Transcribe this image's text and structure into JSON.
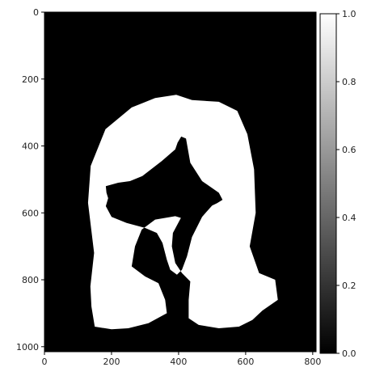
{
  "chart_data": {
    "type": "heatmap",
    "title": "",
    "xlabel": "",
    "ylabel": "",
    "xlim": [
      0,
      810
    ],
    "ylim": [
      1015,
      0
    ],
    "xticks": [
      "0",
      "200",
      "400",
      "600",
      "800"
    ],
    "yticks": [
      "0",
      "200",
      "400",
      "600",
      "800",
      "1000"
    ],
    "colormap": "gray",
    "colorbar": {
      "range": [
        0,
        1
      ],
      "ticks": [
        "0.0",
        "0.2",
        "0.4",
        "0.6",
        "0.8",
        "1.0"
      ]
    },
    "mask_values": {
      "background": 0,
      "foreground": 1
    },
    "mask_outline": [
      [
        137,
        820
      ],
      [
        148,
        720
      ],
      [
        130,
        570
      ],
      [
        138,
        460
      ],
      [
        182,
        350
      ],
      [
        260,
        285
      ],
      [
        330,
        257
      ],
      [
        393,
        247
      ],
      [
        440,
        263
      ],
      [
        520,
        268
      ],
      [
        575,
        295
      ],
      [
        605,
        365
      ],
      [
        625,
        470
      ],
      [
        630,
        600
      ],
      [
        612,
        700
      ],
      [
        640,
        780
      ],
      [
        688,
        800
      ],
      [
        696,
        860
      ],
      [
        650,
        892
      ],
      [
        620,
        920
      ],
      [
        580,
        940
      ],
      [
        520,
        945
      ],
      [
        460,
        935
      ],
      [
        430,
        915
      ],
      [
        430,
        860
      ],
      [
        435,
        805
      ],
      [
        410,
        780
      ],
      [
        390,
        750
      ],
      [
        380,
        700
      ],
      [
        383,
        660
      ],
      [
        407,
        615
      ],
      [
        390,
        610
      ],
      [
        330,
        620
      ],
      [
        290,
        650
      ],
      [
        270,
        700
      ],
      [
        260,
        760
      ],
      [
        300,
        790
      ],
      [
        340,
        810
      ],
      [
        360,
        860
      ],
      [
        365,
        900
      ],
      [
        310,
        930
      ],
      [
        250,
        945
      ],
      [
        200,
        948
      ],
      [
        150,
        940
      ],
      [
        140,
        880
      ]
    ],
    "hole_outline": [
      [
        183,
        520
      ],
      [
        220,
        510
      ],
      [
        255,
        505
      ],
      [
        292,
        490
      ],
      [
        350,
        445
      ],
      [
        390,
        410
      ],
      [
        397,
        390
      ],
      [
        408,
        372
      ],
      [
        422,
        378
      ],
      [
        435,
        450
      ],
      [
        470,
        505
      ],
      [
        520,
        540
      ],
      [
        531,
        561
      ],
      [
        515,
        571
      ],
      [
        500,
        578
      ],
      [
        470,
        612
      ],
      [
        440,
        672
      ],
      [
        425,
        730
      ],
      [
        410,
        770
      ],
      [
        395,
        785
      ],
      [
        375,
        770
      ],
      [
        365,
        740
      ],
      [
        352,
        690
      ],
      [
        335,
        660
      ],
      [
        300,
        645
      ],
      [
        245,
        630
      ],
      [
        200,
        612
      ],
      [
        183,
        580
      ],
      [
        190,
        556
      ],
      [
        185,
        540
      ]
    ]
  }
}
